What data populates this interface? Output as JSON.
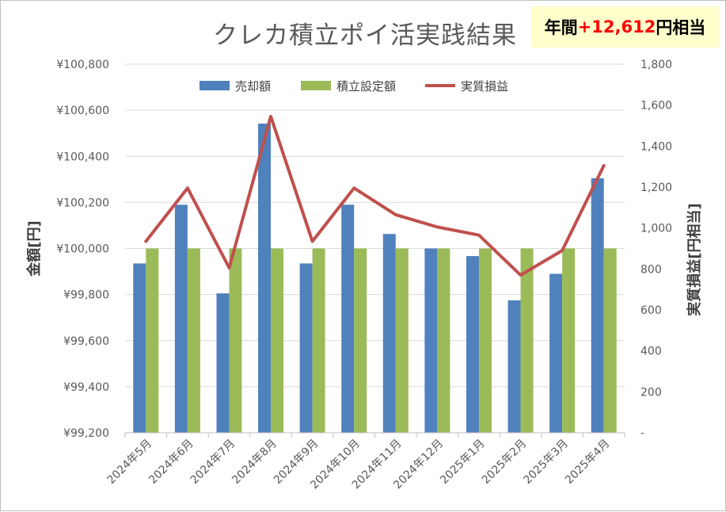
{
  "title": "クレカ積立ポイ活実践結果",
  "badge": {
    "prefix": "年間",
    "amount": "+12,612",
    "suffix": "円相当"
  },
  "colors": {
    "sell": "#4f81bd",
    "invest": "#9bbb59",
    "profit": "#c0504d"
  },
  "chart_data": {
    "type": "bar",
    "categories": [
      "2024年5月",
      "2024年6月",
      "2024年7月",
      "2024年8月",
      "2024年9月",
      "2024年10月",
      "2024年11月",
      "2024年12月",
      "2025年1月",
      "2025年2月",
      "2025年3月",
      "2025年4月"
    ],
    "series": [
      {
        "name": "売却額",
        "type": "bar",
        "axis": "left",
        "values": [
          99935,
          100190,
          99805,
          100542,
          99935,
          100190,
          100063,
          100000,
          99967,
          99775,
          99890,
          100305
        ]
      },
      {
        "name": "積立設定額",
        "type": "bar",
        "axis": "left",
        "values": [
          100000,
          100000,
          100000,
          100000,
          100000,
          100000,
          100000,
          100000,
          100000,
          100000,
          100000,
          100000
        ]
      },
      {
        "name": "実質損益",
        "type": "line",
        "axis": "right",
        "values": [
          935,
          1195,
          805,
          1545,
          935,
          1195,
          1065,
          1005,
          965,
          770,
          890,
          1305
        ]
      }
    ],
    "ylabel": "金額[円]",
    "y2label": "実質損益[円相当]",
    "ylim": [
      99200,
      100800
    ],
    "y2lim": [
      0,
      1800
    ],
    "yticks": [
      "¥99,200",
      "¥99,400",
      "¥99,600",
      "¥99,800",
      "¥100,000",
      "¥100,200",
      "¥100,400",
      "¥100,600",
      "¥100,800"
    ],
    "y2ticks": [
      "-",
      "200",
      "400",
      "600",
      "800",
      "1,000",
      "1,200",
      "1,400",
      "1,600",
      "1,800"
    ],
    "grid": true,
    "legend_position": "top"
  }
}
